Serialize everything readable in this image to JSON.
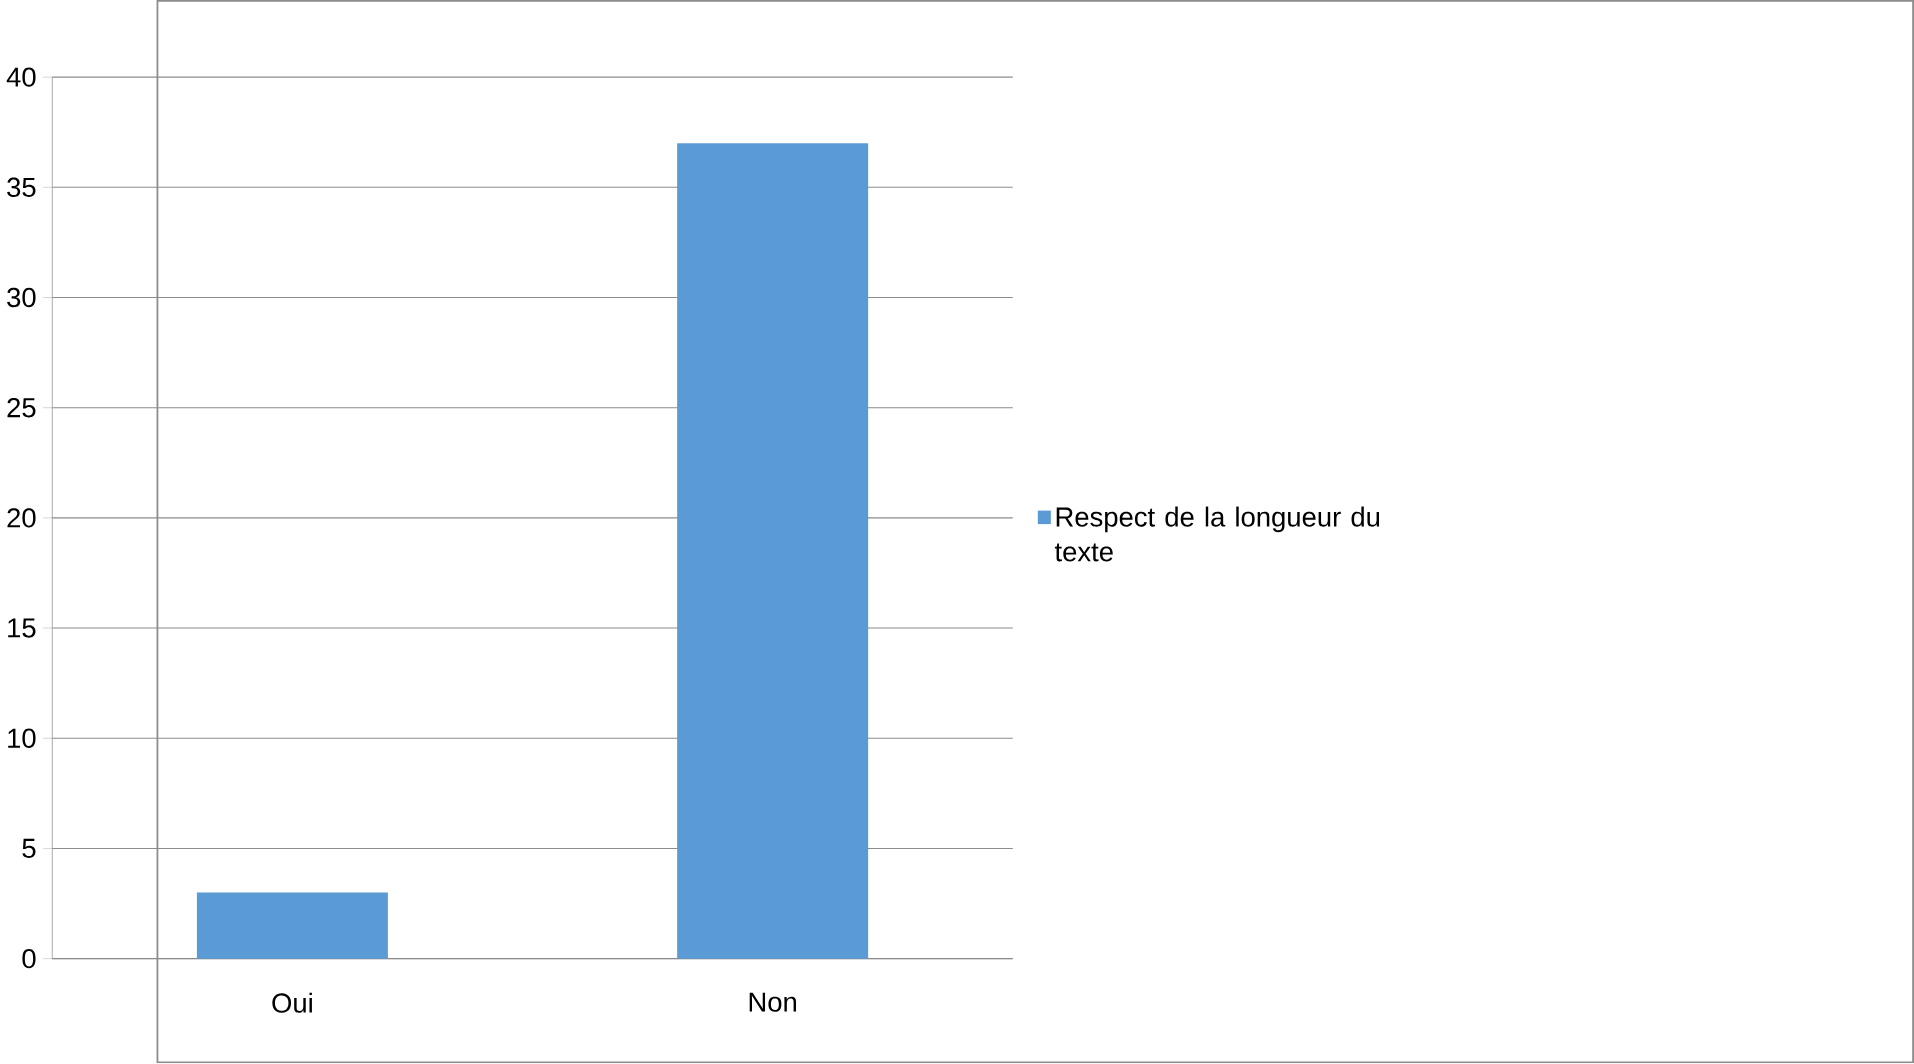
{
  "chart_data": {
    "type": "bar",
    "categories": [
      "Oui",
      "Non"
    ],
    "series": [
      {
        "name": "Respect de la longueur du texte",
        "color": "#5b9bd5",
        "values": [
          3,
          37
        ]
      }
    ],
    "ylim": [
      0,
      40
    ],
    "yticks": [
      0,
      5,
      10,
      15,
      20,
      25,
      30,
      35,
      40
    ],
    "grid": "y",
    "legend": "right"
  }
}
